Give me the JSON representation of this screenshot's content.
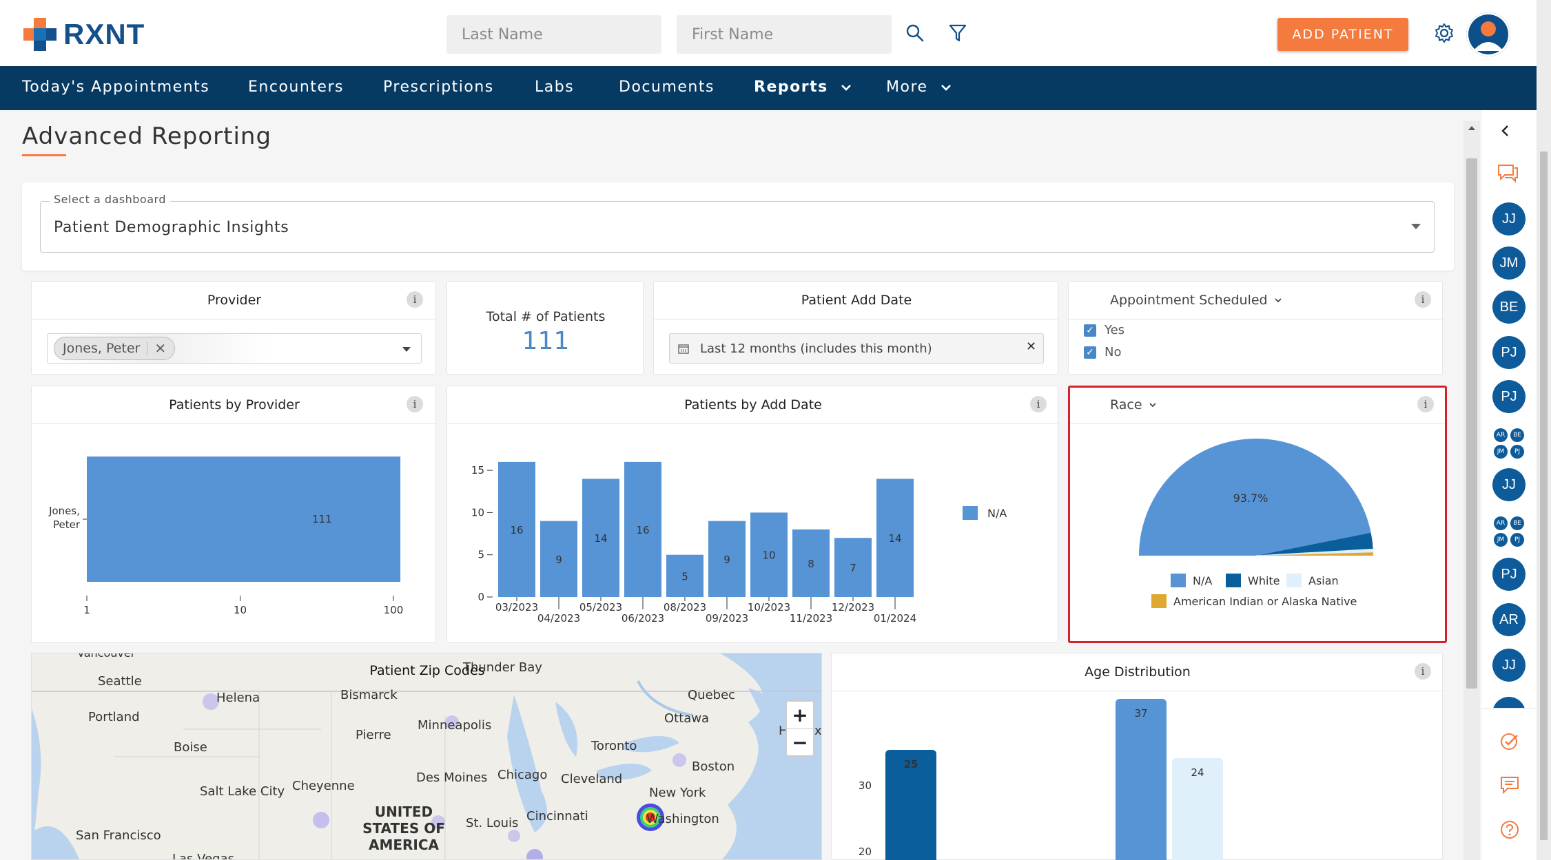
{
  "brand": {
    "name": "RXNT"
  },
  "header": {
    "last_name_placeholder": "Last Name",
    "first_name_placeholder": "First Name",
    "add_patient_label": "ADD PATIENT"
  },
  "nav": {
    "items": [
      {
        "label": "Today's Appointments"
      },
      {
        "label": "Encounters"
      },
      {
        "label": "Prescriptions"
      },
      {
        "label": "Labs"
      },
      {
        "label": "Documents"
      },
      {
        "label": "Reports"
      },
      {
        "label": "More"
      }
    ]
  },
  "page": {
    "title": "Advanced Reporting"
  },
  "dashboard_select": {
    "label": "Select a dashboard",
    "value": "Patient Demographic Insights"
  },
  "provider_filter": {
    "title": "Provider",
    "chip": "Jones, Peter"
  },
  "total_patients": {
    "label": "Total # of Patients",
    "value": "111"
  },
  "patient_add_date": {
    "title": "Patient Add Date",
    "value": "Last 12 months (includes this month)"
  },
  "appointment_scheduled": {
    "title": "Appointment Scheduled",
    "options": [
      {
        "label": "Yes",
        "checked": true
      },
      {
        "label": "No",
        "checked": true
      }
    ]
  },
  "patients_by_provider": {
    "title": "Patients by Provider"
  },
  "patients_by_add_date": {
    "title": "Patients by Add Date"
  },
  "race": {
    "title": "Race"
  },
  "patient_zip_codes": {
    "title": "Patient Zip Codes",
    "zoom_in": "+",
    "zoom_out": "−",
    "cities": [
      "Vancouver",
      "Thunder Bay",
      "Seattle",
      "Helena",
      "Bismarck",
      "Quebec",
      "Portland",
      "Ottawa",
      "Minneapolis",
      "Pierre",
      "Boise",
      "Toronto",
      "Boston",
      "Des Moines",
      "Chicago",
      "Cleveland",
      "Salt Lake City",
      "Cheyenne",
      "New York",
      "Cincinnati",
      "Washington",
      "St. Louis",
      "San Francisco",
      "Las Vegas",
      "H",
      "x"
    ],
    "country": [
      "UNITED",
      "STATES OF",
      "AMERICA"
    ]
  },
  "age_distribution": {
    "title": "Age Distribution"
  },
  "rail": {
    "avatars": [
      "JJ",
      "JM",
      "BE",
      "PJ",
      "PJ",
      "JJ",
      "PJ",
      "AR",
      "JJ"
    ],
    "mini_group_1": [
      "AR",
      "BE",
      "JM",
      "PJ"
    ],
    "mini_group_2": [
      "AR",
      "BE",
      "JM",
      "PJ"
    ]
  },
  "chart_data": [
    {
      "type": "bar",
      "title": "Patients by Provider",
      "orientation": "horizontal",
      "categories": [
        "Jones, Peter"
      ],
      "values": [
        111
      ],
      "x_scale": "log",
      "x_ticks": [
        "1",
        "10",
        "100"
      ]
    },
    {
      "type": "bar",
      "title": "Patients by Add Date",
      "categories": [
        "03/2023",
        "04/2023",
        "05/2023",
        "06/2023",
        "08/2023",
        "09/2023",
        "10/2023",
        "11/2023",
        "12/2023",
        "01/2024"
      ],
      "series": [
        {
          "name": "N/A",
          "values": [
            16,
            9,
            14,
            16,
            5,
            9,
            10,
            8,
            7,
            14
          ]
        }
      ],
      "ylim": [
        0,
        16
      ],
      "y_ticks": [
        "0",
        "5",
        "10",
        "15"
      ],
      "legend": "right",
      "colors": {
        "N/A": "#5794d5"
      }
    },
    {
      "type": "pie",
      "title": "Race",
      "style": "half",
      "slices": [
        {
          "name": "N/A",
          "value": 93.7,
          "label": "93.7%",
          "color": "#5794d5"
        },
        {
          "name": "White",
          "value": 4.5,
          "color": "#0a5e9b"
        },
        {
          "name": "Asian",
          "value": 0.9,
          "color": "#dff0fb"
        },
        {
          "name": "American Indian or Alaska Native",
          "value": 0.9,
          "color": "#e0a830"
        }
      ],
      "legend": "bottom"
    },
    {
      "type": "bar",
      "title": "Age Distribution",
      "y_ticks": [
        "20",
        "30"
      ],
      "visible_bars": [
        {
          "value": 25,
          "color": "#0a5e9b"
        },
        {
          "value": 37,
          "color": "#5794d5"
        },
        {
          "value": 24,
          "color": "#dff0fb"
        }
      ]
    }
  ]
}
